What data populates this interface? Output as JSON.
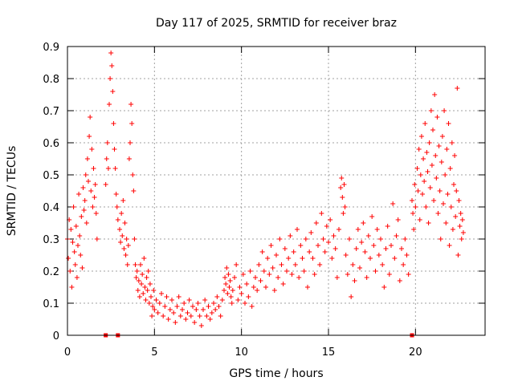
{
  "chart_data": {
    "type": "scatter",
    "title": "Day 117 of 2025, SRMTID for receiver braz",
    "xlabel": "GPS time / hours",
    "ylabel": "SRMTID / TECUs",
    "xlim": [
      0,
      24
    ],
    "ylim": [
      0,
      0.9
    ],
    "xticks": [
      0,
      5,
      10,
      15,
      20
    ],
    "xtick_labels": [
      "0",
      "5",
      "10",
      "15",
      "20"
    ],
    "yticks": [
      0,
      0.1,
      0.2,
      0.3,
      0.4,
      0.5,
      0.6,
      0.7,
      0.8,
      0.9
    ],
    "ytick_labels": [
      "0",
      "0.1",
      "0.2",
      "0.3",
      "0.4",
      "0.5",
      "0.6",
      "0.7",
      "0.8",
      "0.9"
    ],
    "grid": true,
    "marker": "+",
    "color": "#ff0000",
    "series": [
      {
        "name": "SRMTID",
        "points": [
          [
            0.0,
            0.3
          ],
          [
            0.05,
            0.24
          ],
          [
            0.1,
            0.36
          ],
          [
            0.15,
            0.2
          ],
          [
            0.2,
            0.33
          ],
          [
            0.25,
            0.15
          ],
          [
            0.3,
            0.29
          ],
          [
            0.35,
            0.4
          ],
          [
            0.4,
            0.26
          ],
          [
            0.45,
            0.22
          ],
          [
            0.5,
            0.34
          ],
          [
            0.55,
            0.18
          ],
          [
            0.6,
            0.28
          ],
          [
            0.65,
            0.44
          ],
          [
            0.7,
            0.31
          ],
          [
            0.75,
            0.25
          ],
          [
            0.8,
            0.37
          ],
          [
            0.85,
            0.21
          ],
          [
            0.9,
            0.46
          ],
          [
            0.95,
            0.39
          ],
          [
            1.0,
            0.42
          ],
          [
            1.05,
            0.5
          ],
          [
            1.1,
            0.35
          ],
          [
            1.15,
            0.55
          ],
          [
            1.2,
            0.48
          ],
          [
            1.25,
            0.62
          ],
          [
            1.3,
            0.68
          ],
          [
            1.35,
            0.45
          ],
          [
            1.4,
            0.58
          ],
          [
            1.45,
            0.4
          ],
          [
            1.5,
            0.52
          ],
          [
            1.55,
            0.43
          ],
          [
            1.6,
            0.47
          ],
          [
            1.65,
            0.38
          ],
          [
            1.7,
            0.3
          ],
          [
            2.2,
            0.47
          ],
          [
            2.25,
            0.55
          ],
          [
            2.3,
            0.6
          ],
          [
            2.35,
            0.52
          ],
          [
            2.4,
            0.72
          ],
          [
            2.45,
            0.8
          ],
          [
            2.5,
            0.88
          ],
          [
            2.55,
            0.84
          ],
          [
            2.6,
            0.76
          ],
          [
            2.65,
            0.66
          ],
          [
            2.7,
            0.58
          ],
          [
            2.75,
            0.52
          ],
          [
            2.8,
            0.44
          ],
          [
            2.85,
            0.4
          ],
          [
            2.9,
            0.36
          ],
          [
            3.0,
            0.33
          ],
          [
            3.05,
            0.29
          ],
          [
            3.1,
            0.38
          ],
          [
            3.15,
            0.31
          ],
          [
            3.2,
            0.42
          ],
          [
            3.25,
            0.27
          ],
          [
            3.3,
            0.35
          ],
          [
            3.35,
            0.25
          ],
          [
            3.4,
            0.3
          ],
          [
            3.45,
            0.22
          ],
          [
            3.5,
            0.28
          ],
          [
            3.55,
            0.55
          ],
          [
            3.6,
            0.6
          ],
          [
            3.65,
            0.72
          ],
          [
            3.7,
            0.66
          ],
          [
            3.75,
            0.5
          ],
          [
            3.8,
            0.45
          ],
          [
            3.85,
            0.3
          ],
          [
            3.9,
            0.22
          ],
          [
            3.95,
            0.18
          ],
          [
            4.0,
            0.2
          ],
          [
            4.05,
            0.14
          ],
          [
            4.1,
            0.17
          ],
          [
            4.15,
            0.12
          ],
          [
            4.2,
            0.22
          ],
          [
            4.25,
            0.16
          ],
          [
            4.3,
            0.19
          ],
          [
            4.35,
            0.13
          ],
          [
            4.4,
            0.24
          ],
          [
            4.45,
            0.15
          ],
          [
            4.5,
            0.11
          ],
          [
            4.55,
            0.18
          ],
          [
            4.6,
            0.14
          ],
          [
            4.65,
            0.2
          ],
          [
            4.7,
            0.1
          ],
          [
            4.75,
            0.16
          ],
          [
            4.8,
            0.12
          ],
          [
            4.85,
            0.06
          ],
          [
            4.9,
            0.09
          ],
          [
            4.95,
            0.14
          ],
          [
            5.0,
            0.08
          ],
          [
            5.1,
            0.11
          ],
          [
            5.2,
            0.07
          ],
          [
            5.3,
            0.1
          ],
          [
            5.4,
            0.13
          ],
          [
            5.5,
            0.06
          ],
          [
            5.6,
            0.09
          ],
          [
            5.7,
            0.12
          ],
          [
            5.8,
            0.05
          ],
          [
            5.9,
            0.08
          ],
          [
            6.0,
            0.11
          ],
          [
            6.1,
            0.07
          ],
          [
            6.2,
            0.04
          ],
          [
            6.3,
            0.09
          ],
          [
            6.4,
            0.12
          ],
          [
            6.5,
            0.06
          ],
          [
            6.6,
            0.08
          ],
          [
            6.7,
            0.1
          ],
          [
            6.8,
            0.05
          ],
          [
            6.9,
            0.07
          ],
          [
            7.0,
            0.11
          ],
          [
            7.1,
            0.06
          ],
          [
            7.2,
            0.09
          ],
          [
            7.3,
            0.04
          ],
          [
            7.4,
            0.08
          ],
          [
            7.5,
            0.1
          ],
          [
            7.6,
            0.06
          ],
          [
            7.7,
            0.03
          ],
          [
            7.8,
            0.08
          ],
          [
            7.9,
            0.11
          ],
          [
            8.0,
            0.06
          ],
          [
            8.1,
            0.09
          ],
          [
            8.2,
            0.05
          ],
          [
            8.3,
            0.07
          ],
          [
            8.4,
            0.1
          ],
          [
            8.5,
            0.08
          ],
          [
            8.6,
            0.12
          ],
          [
            8.7,
            0.09
          ],
          [
            8.8,
            0.06
          ],
          [
            8.9,
            0.11
          ],
          [
            9.0,
            0.14
          ],
          [
            9.05,
            0.18
          ],
          [
            9.1,
            0.16
          ],
          [
            9.15,
            0.21
          ],
          [
            9.2,
            0.13
          ],
          [
            9.25,
            0.19
          ],
          [
            9.3,
            0.15
          ],
          [
            9.35,
            0.17
          ],
          [
            9.4,
            0.12
          ],
          [
            9.45,
            0.1
          ],
          [
            9.5,
            0.14
          ],
          [
            9.6,
            0.18
          ],
          [
            9.7,
            0.22
          ],
          [
            9.8,
            0.11
          ],
          [
            9.9,
            0.15
          ],
          [
            10.0,
            0.13
          ],
          [
            10.1,
            0.19
          ],
          [
            10.2,
            0.1
          ],
          [
            10.3,
            0.16
          ],
          [
            10.4,
            0.12
          ],
          [
            10.5,
            0.2
          ],
          [
            10.6,
            0.09
          ],
          [
            10.7,
            0.15
          ],
          [
            10.8,
            0.18
          ],
          [
            10.9,
            0.14
          ],
          [
            11.0,
            0.22
          ],
          [
            11.1,
            0.17
          ],
          [
            11.2,
            0.26
          ],
          [
            11.3,
            0.2
          ],
          [
            11.4,
            0.15
          ],
          [
            11.5,
            0.24
          ],
          [
            11.6,
            0.19
          ],
          [
            11.7,
            0.28
          ],
          [
            11.8,
            0.21
          ],
          [
            11.9,
            0.14
          ],
          [
            12.0,
            0.25
          ],
          [
            12.1,
            0.18
          ],
          [
            12.2,
            0.3
          ],
          [
            12.3,
            0.22
          ],
          [
            12.4,
            0.16
          ],
          [
            12.5,
            0.27
          ],
          [
            12.6,
            0.2
          ],
          [
            12.7,
            0.24
          ],
          [
            12.8,
            0.31
          ],
          [
            12.9,
            0.19
          ],
          [
            13.0,
            0.26
          ],
          [
            13.1,
            0.22
          ],
          [
            13.2,
            0.33
          ],
          [
            13.3,
            0.18
          ],
          [
            13.4,
            0.28
          ],
          [
            13.5,
            0.24
          ],
          [
            13.6,
            0.2
          ],
          [
            13.7,
            0.3
          ],
          [
            13.8,
            0.15
          ],
          [
            13.9,
            0.26
          ],
          [
            14.0,
            0.32
          ],
          [
            14.1,
            0.24
          ],
          [
            14.2,
            0.19
          ],
          [
            14.3,
            0.35
          ],
          [
            14.4,
            0.28
          ],
          [
            14.5,
            0.22
          ],
          [
            14.6,
            0.38
          ],
          [
            14.7,
            0.3
          ],
          [
            14.8,
            0.26
          ],
          [
            14.9,
            0.34
          ],
          [
            15.0,
            0.29
          ],
          [
            15.1,
            0.36
          ],
          [
            15.2,
            0.24
          ],
          [
            15.3,
            0.31
          ],
          [
            15.4,
            0.27
          ],
          [
            15.5,
            0.18
          ],
          [
            15.6,
            0.33
          ],
          [
            15.7,
            0.46
          ],
          [
            15.75,
            0.49
          ],
          [
            15.8,
            0.43
          ],
          [
            15.85,
            0.38
          ],
          [
            15.9,
            0.47
          ],
          [
            15.95,
            0.4
          ],
          [
            16.0,
            0.25
          ],
          [
            16.1,
            0.19
          ],
          [
            16.2,
            0.3
          ],
          [
            16.3,
            0.12
          ],
          [
            16.4,
            0.22
          ],
          [
            16.5,
            0.17
          ],
          [
            16.6,
            0.27
          ],
          [
            16.7,
            0.33
          ],
          [
            16.8,
            0.21
          ],
          [
            16.9,
            0.29
          ],
          [
            17.0,
            0.35
          ],
          [
            17.1,
            0.26
          ],
          [
            17.2,
            0.18
          ],
          [
            17.3,
            0.31
          ],
          [
            17.4,
            0.24
          ],
          [
            17.5,
            0.37
          ],
          [
            17.6,
            0.28
          ],
          [
            17.7,
            0.2
          ],
          [
            17.8,
            0.33
          ],
          [
            17.9,
            0.25
          ],
          [
            18.0,
            0.3
          ],
          [
            18.1,
            0.22
          ],
          [
            18.2,
            0.15
          ],
          [
            18.3,
            0.27
          ],
          [
            18.4,
            0.34
          ],
          [
            18.5,
            0.19
          ],
          [
            18.6,
            0.28
          ],
          [
            18.7,
            0.41
          ],
          [
            18.8,
            0.24
          ],
          [
            18.9,
            0.31
          ],
          [
            19.0,
            0.36
          ],
          [
            19.1,
            0.17
          ],
          [
            19.2,
            0.27
          ],
          [
            19.3,
            0.22
          ],
          [
            19.4,
            0.3
          ],
          [
            19.5,
            0.25
          ],
          [
            19.6,
            0.19
          ],
          [
            19.8,
            0.42
          ],
          [
            19.85,
            0.38
          ],
          [
            19.9,
            0.33
          ],
          [
            19.95,
            0.47
          ],
          [
            20.0,
            0.4
          ],
          [
            20.1,
            0.52
          ],
          [
            20.15,
            0.45
          ],
          [
            20.2,
            0.58
          ],
          [
            20.25,
            0.36
          ],
          [
            20.3,
            0.5
          ],
          [
            20.35,
            0.62
          ],
          [
            20.4,
            0.44
          ],
          [
            20.45,
            0.55
          ],
          [
            20.5,
            0.48
          ],
          [
            20.55,
            0.66
          ],
          [
            20.6,
            0.4
          ],
          [
            20.65,
            0.57
          ],
          [
            20.7,
            0.51
          ],
          [
            20.75,
            0.35
          ],
          [
            20.8,
            0.6
          ],
          [
            20.85,
            0.46
          ],
          [
            20.9,
            0.7
          ],
          [
            20.95,
            0.53
          ],
          [
            21.0,
            0.64
          ],
          [
            21.05,
            0.42
          ],
          [
            21.1,
            0.75
          ],
          [
            21.15,
            0.56
          ],
          [
            21.2,
            0.49
          ],
          [
            21.25,
            0.68
          ],
          [
            21.3,
            0.38
          ],
          [
            21.35,
            0.59
          ],
          [
            21.4,
            0.45
          ],
          [
            21.45,
            0.3
          ],
          [
            21.5,
            0.54
          ],
          [
            21.55,
            0.62
          ],
          [
            21.6,
            0.41
          ],
          [
            21.65,
            0.7
          ],
          [
            21.7,
            0.5
          ],
          [
            21.75,
            0.35
          ],
          [
            21.8,
            0.58
          ],
          [
            21.85,
            0.44
          ],
          [
            21.9,
            0.66
          ],
          [
            21.95,
            0.28
          ],
          [
            22.0,
            0.52
          ],
          [
            22.05,
            0.4
          ],
          [
            22.1,
            0.6
          ],
          [
            22.15,
            0.33
          ],
          [
            22.2,
            0.47
          ],
          [
            22.25,
            0.56
          ],
          [
            22.3,
            0.37
          ],
          [
            22.35,
            0.45
          ],
          [
            22.4,
            0.77
          ],
          [
            22.45,
            0.25
          ],
          [
            22.5,
            0.42
          ],
          [
            22.55,
            0.34
          ],
          [
            22.6,
            0.38
          ],
          [
            22.65,
            0.3
          ],
          [
            22.7,
            0.36
          ],
          [
            22.75,
            0.32
          ]
        ]
      }
    ],
    "baseline_markers_x": [
      2.2,
      2.9,
      19.8
    ]
  }
}
